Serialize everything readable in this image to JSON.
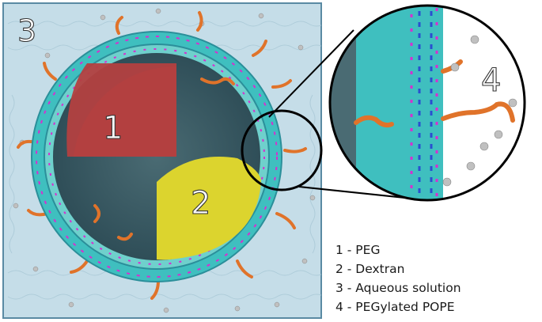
{
  "labels": {
    "region_1": "1",
    "region_2": "2",
    "region_3": "3",
    "region_4": "4"
  },
  "legend": [
    {
      "text": "1 - PEG"
    },
    {
      "text": "2 - Dextran"
    },
    {
      "text": "3 - Aqueous solution"
    },
    {
      "text": "4 - PEGylated POPE"
    }
  ],
  "colors": {
    "water": "#c5dde8",
    "water_border": "#5a8aa3",
    "peg": "#b34040",
    "dextran": "#dcd42e",
    "membrane_lipid": "#3fbfbf",
    "pegylated_chain": "#e0732a",
    "headgroup": "#d62fd0",
    "ion": "#bdbdbd",
    "zoom_ring": "#000000"
  }
}
